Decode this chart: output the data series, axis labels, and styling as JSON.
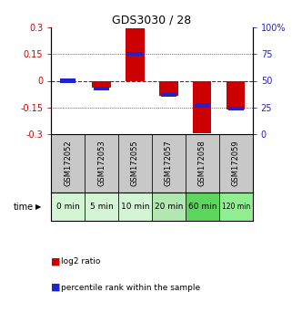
{
  "title": "GDS3030 / 28",
  "samples": [
    "GSM172052",
    "GSM172053",
    "GSM172055",
    "GSM172057",
    "GSM172058",
    "GSM172059"
  ],
  "time_labels": [
    "0 min",
    "5 min",
    "10 min",
    "20 min",
    "60 min",
    "120 min"
  ],
  "log2_ratio": [
    0.0,
    -0.04,
    0.295,
    -0.085,
    -0.295,
    -0.16
  ],
  "percentile_rank": [
    50,
    43,
    75,
    37,
    27,
    24
  ],
  "ylim": [
    -0.3,
    0.3
  ],
  "yticks": [
    -0.3,
    -0.15,
    0,
    0.15,
    0.3
  ],
  "right_yticks": [
    0,
    25,
    50,
    75,
    100
  ],
  "right_ylim": [
    0,
    100
  ],
  "bar_width": 0.55,
  "red_color": "#cc0000",
  "blue_color": "#2222cc",
  "gray_color": "#c8c8c8",
  "left_tick_color": "#cc0000",
  "right_tick_color": "#2222cc",
  "zero_line_color": "#cc0000",
  "grid_color": "#000000",
  "time_green_colors": [
    "#d4f5d4",
    "#d4f5d4",
    "#d4f5d4",
    "#b0e8b0",
    "#5cd65c",
    "#90ee90"
  ],
  "legend_red_label": "log2 ratio",
  "legend_blue_label": "percentile rank within the sample",
  "time_label": "time"
}
